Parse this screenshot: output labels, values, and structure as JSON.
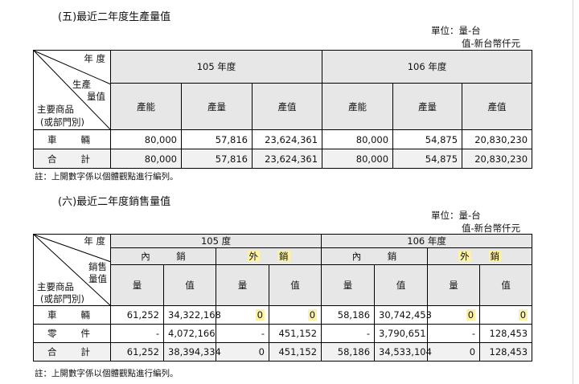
{
  "production": {
    "title": "(五)最近二年度生產量值",
    "unit_line1": "單位：量-台",
    "unit_line2": "值-新台幣仟元",
    "corner": {
      "year": "年 度",
      "item_line1": "生產",
      "item_line2": "量值",
      "product_line1": "主要商品",
      "product_line2": "(或部門別)"
    },
    "years": [
      "105 年度",
      "106 年度"
    ],
    "columns": [
      "產能",
      "產量",
      "產值",
      "產能",
      "產量",
      "產值"
    ],
    "rows": [
      {
        "label_a": "車",
        "label_b": "輛",
        "values": [
          "80,000",
          "57,816",
          "23,624,361",
          "80,000",
          "54,875",
          "20,830,230"
        ]
      },
      {
        "label_a": "合",
        "label_b": "計",
        "values": [
          "80,000",
          "57,816",
          "23,624,361",
          "80,000",
          "54,875",
          "20,830,230"
        ]
      }
    ],
    "note": "註：上開數字係以個體觀點進行編列。"
  },
  "sales": {
    "title": "(六)最近二年度銷售量值",
    "unit_line1": "單位：量-台",
    "unit_line2": "值-新台幣仟元",
    "corner": {
      "year": "年 度",
      "item_line1": "銷售",
      "item_line2": "量值",
      "product_line1": "主要商品",
      "product_line2": "(或部門別)"
    },
    "years": [
      "105 度",
      "106 年度"
    ],
    "markets": [
      {
        "a": "內",
        "b": "銷"
      },
      {
        "a": "外",
        "b": "銷"
      },
      {
        "a": "內",
        "b": "銷"
      },
      {
        "a": "外",
        "b": "銷"
      }
    ],
    "columns": [
      "量",
      "值",
      "量",
      "值",
      "量",
      "值",
      "量",
      "值"
    ],
    "rows": [
      {
        "label_a": "車",
        "label_b": "輛",
        "values": [
          "61,252",
          "34,322,168",
          "0",
          "0",
          "58,186",
          "30,742,453",
          "0",
          "0"
        ]
      },
      {
        "label_a": "零",
        "label_b": "件",
        "values": [
          "-",
          "4,072,166",
          "-",
          "451,152",
          "-",
          "3,790,651",
          "-",
          "128,453"
        ]
      },
      {
        "label_a": "合",
        "label_b": "計",
        "values": [
          "61,252",
          "38,394,334",
          "0",
          "451,152",
          "58,186",
          "34,533,104",
          "0",
          "128,453"
        ]
      }
    ],
    "note": "註：上開數字係以個體觀點進行編列。"
  },
  "colors": {
    "header_fill": "#e7e7e7",
    "stripe_fill": "#f1f1f1",
    "highlight": "#fbf1a8"
  }
}
